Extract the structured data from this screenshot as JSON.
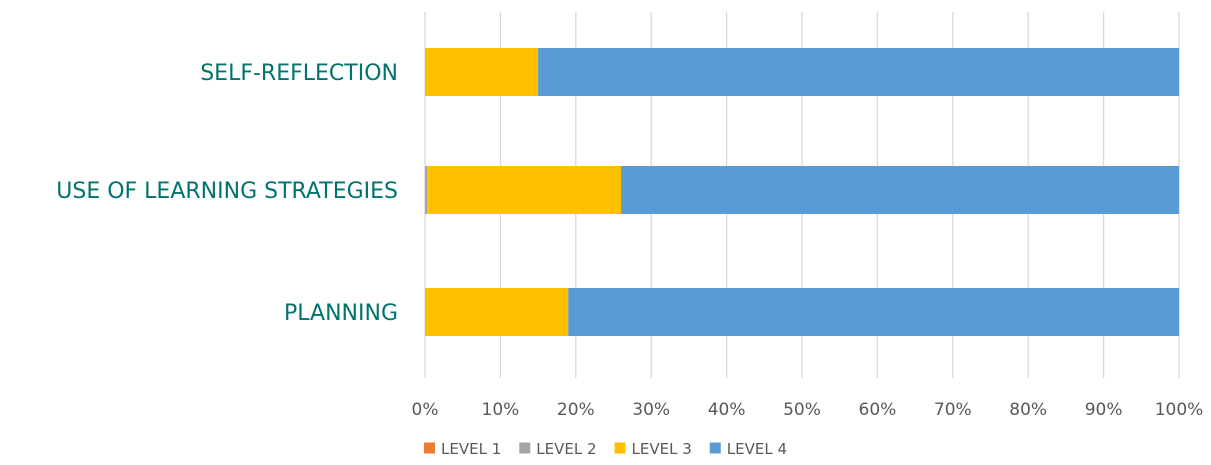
{
  "chart_data": {
    "type": "bar",
    "orientation": "horizontal",
    "stacked": "percent",
    "title": "",
    "xlabel": "",
    "ylabel": "",
    "categories": [
      "SELF-REFLECTION",
      "USE OF LEARNING STRATEGIES",
      "PLANNING"
    ],
    "series": [
      {
        "name": "LEVEL 1",
        "color": "#ED7D31",
        "values": [
          0,
          0,
          0
        ]
      },
      {
        "name": "LEVEL 2",
        "color": "#A5A5A5",
        "values": [
          0,
          0.3,
          0
        ]
      },
      {
        "name": "LEVEL 3",
        "color": "#FFC000",
        "values": [
          15,
          25.7,
          19
        ]
      },
      {
        "name": "LEVEL 4",
        "color": "#5B9BD5",
        "values": [
          85,
          74,
          81
        ]
      }
    ],
    "xlim": [
      0,
      100
    ],
    "xticks": [
      "0%",
      "10%",
      "20%",
      "30%",
      "40%",
      "50%",
      "60%",
      "70%",
      "80%",
      "90%",
      "100%"
    ],
    "grid": true,
    "legend": "bottom",
    "category_label_color": "#00736F",
    "gridline_color": "#D9D9D9"
  }
}
